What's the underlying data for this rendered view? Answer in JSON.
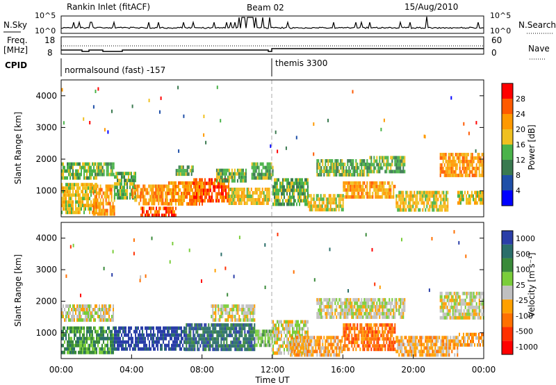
{
  "header": {
    "station": "Rankin Inlet (fitACF)",
    "beam": "Beam 02",
    "date": "15/Aug/2010"
  },
  "strip_labels": {
    "nsky": "N.Sky",
    "nsearch": "N.Search",
    "freq": "Freq.",
    "freq_unit": "[MHz]",
    "nave": "Nave",
    "cpid": "CPID"
  },
  "strip_ticks": {
    "nsky_top": "10^5",
    "nsky_bottom": "10^0",
    "nsearch_top": "10^5",
    "nsearch_bottom": "10^0",
    "freq_top": "18",
    "freq_bottom": "8",
    "nave_top": "60",
    "nave_bottom": "0"
  },
  "cpid": {
    "left_label": "normalsound (fast) -157",
    "right_label": "themis 3300",
    "switch_time_h": 12.0
  },
  "colors": {
    "frame": "#000000",
    "marker_line": "#aaaaaa",
    "power_scale": [
      "#0000ff",
      "#1f4fa8",
      "#3a7a50",
      "#4ab34a",
      "#f0c020",
      "#ff9900",
      "#ff5a00",
      "#ff0000"
    ],
    "velocity_scale": [
      "#2a3ea8",
      "#2a6e6a",
      "#3a8a3a",
      "#7acd3a",
      "#c0c0c0",
      "#ffa000",
      "#ff7000",
      "#ff3000",
      "#ff0000"
    ]
  },
  "chart_data": [
    {
      "type": "heatmap",
      "name": "power",
      "ylabel": "Slant Range [km]",
      "xlim": [
        0,
        24
      ],
      "ylim": [
        180,
        4500
      ],
      "yticks": [
        1000,
        2000,
        3000,
        4000
      ],
      "colorbar_label": "Power [dB]",
      "colorbar_ticks": [
        "4",
        "8",
        "12",
        "16",
        "20",
        "24",
        "28"
      ],
      "colorbar_range": [
        0,
        32
      ],
      "bands": [
        {
          "t0": 0.0,
          "t1": 2.0,
          "r0": 350,
          "r1": 1250,
          "level": 4
        },
        {
          "t0": 0.0,
          "t1": 2.0,
          "r0": 1400,
          "r1": 1900,
          "level": 3
        },
        {
          "t0": 1.8,
          "t1": 3.0,
          "r0": 300,
          "r1": 1200,
          "level": 5
        },
        {
          "t0": 2.0,
          "t1": 3.0,
          "r0": 1500,
          "r1": 1900,
          "level": 3
        },
        {
          "t0": 3.0,
          "t1": 4.2,
          "r0": 800,
          "r1": 1600,
          "level": 3
        },
        {
          "t0": 4.0,
          "t1": 6.0,
          "r0": 600,
          "r1": 1200,
          "level": 5
        },
        {
          "t0": 4.5,
          "t1": 6.5,
          "r0": 180,
          "r1": 500,
          "level": 6
        },
        {
          "t0": 6.0,
          "t1": 8.0,
          "r0": 600,
          "r1": 1300,
          "level": 5
        },
        {
          "t0": 7.5,
          "t1": 9.5,
          "r0": 700,
          "r1": 1400,
          "level": 6
        },
        {
          "t0": 6.5,
          "t1": 7.5,
          "r0": 1500,
          "r1": 1800,
          "level": 3
        },
        {
          "t0": 9.5,
          "t1": 11.8,
          "r0": 600,
          "r1": 1100,
          "level": 4
        },
        {
          "t0": 8.8,
          "t1": 10.5,
          "r0": 1350,
          "r1": 1700,
          "level": 3
        },
        {
          "t0": 10.8,
          "t1": 12.0,
          "r0": 1400,
          "r1": 1900,
          "level": 3
        },
        {
          "t0": 12.0,
          "t1": 14.0,
          "r0": 600,
          "r1": 1400,
          "level": 3
        },
        {
          "t0": 14.0,
          "t1": 16.0,
          "r0": 400,
          "r1": 900,
          "level": 4
        },
        {
          "t0": 16.0,
          "t1": 19.0,
          "r0": 800,
          "r1": 1300,
          "level": 5
        },
        {
          "t0": 14.5,
          "t1": 17.5,
          "r0": 1500,
          "r1": 2000,
          "level": 3
        },
        {
          "t0": 17.5,
          "t1": 19.5,
          "r0": 1600,
          "r1": 2100,
          "level": 3
        },
        {
          "t0": 19.0,
          "t1": 22.0,
          "r0": 400,
          "r1": 1000,
          "level": 4
        },
        {
          "t0": 21.5,
          "t1": 24.0,
          "r0": 1500,
          "r1": 2200,
          "level": 5
        },
        {
          "t0": 22.5,
          "t1": 24.0,
          "r0": 600,
          "r1": 1000,
          "level": 4
        }
      ]
    },
    {
      "type": "heatmap",
      "name": "velocity",
      "ylabel": "Slant Range [km]",
      "xlabel": "Time UT",
      "xlim": [
        0,
        24
      ],
      "ylim": [
        180,
        4500
      ],
      "yticks": [
        1000,
        2000,
        3000,
        4000
      ],
      "xticks": [
        "00:00",
        "04:00",
        "08:00",
        "12:00",
        "16:00",
        "20:00",
        "00:00"
      ],
      "colorbar_label": "Velocity [m s⁻¹]",
      "colorbar_ticks": [
        "1000",
        "500",
        "100",
        "25",
        "-25",
        "-100",
        "-500",
        "-1000"
      ],
      "bands": [
        {
          "t0": 0.0,
          "t1": 3.0,
          "r0": 350,
          "r1": 1200,
          "level": 2
        },
        {
          "t0": 0.0,
          "t1": 3.0,
          "r0": 1400,
          "r1": 1900,
          "level": 4
        },
        {
          "t0": 3.0,
          "t1": 7.0,
          "r0": 500,
          "r1": 1200,
          "level": 0
        },
        {
          "t0": 7.0,
          "t1": 11.0,
          "r0": 500,
          "r1": 1300,
          "level": 1
        },
        {
          "t0": 8.5,
          "t1": 11.0,
          "r0": 1400,
          "r1": 1900,
          "level": 4
        },
        {
          "t0": 11.0,
          "t1": 12.0,
          "r0": 600,
          "r1": 1100,
          "level": 3
        },
        {
          "t0": 12.0,
          "t1": 14.0,
          "r0": 400,
          "r1": 1400,
          "level": 4
        },
        {
          "t0": 13.0,
          "t1": 16.0,
          "r0": 300,
          "r1": 900,
          "level": 5
        },
        {
          "t0": 16.0,
          "t1": 19.0,
          "r0": 500,
          "r1": 1300,
          "level": 6
        },
        {
          "t0": 19.0,
          "t1": 22.5,
          "r0": 300,
          "r1": 900,
          "level": 5
        },
        {
          "t0": 14.5,
          "t1": 19.5,
          "r0": 1500,
          "r1": 2100,
          "level": 4
        },
        {
          "t0": 21.5,
          "t1": 24.0,
          "r0": 1500,
          "r1": 2300,
          "level": 4
        },
        {
          "t0": 22.5,
          "t1": 24.0,
          "r0": 600,
          "r1": 1000,
          "level": 5
        }
      ]
    }
  ]
}
